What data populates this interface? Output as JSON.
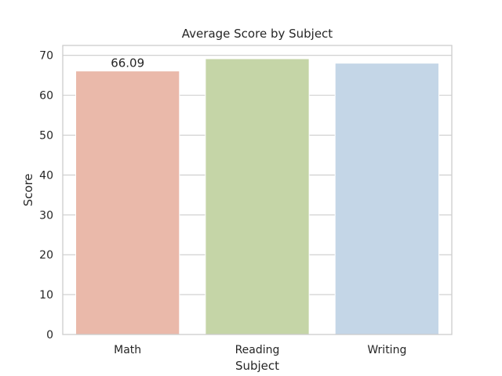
{
  "chart_data": {
    "type": "bar",
    "title": "Average Score by Subject",
    "xlabel": "Subject",
    "ylabel": "Score",
    "categories": [
      "Math",
      "Reading",
      "Writing"
    ],
    "values": [
      66.09,
      69.17,
      68.05
    ],
    "colors": [
      "#eab9aa",
      "#c5d5a7",
      "#c4d6e7"
    ],
    "data_labels": [
      "66.09",
      "",
      ""
    ],
    "ylim": [
      0,
      72.5
    ],
    "yticks": [
      0,
      10,
      20,
      30,
      40,
      50,
      60,
      70
    ],
    "grid": "horizontal",
    "background": "#ffffff",
    "grid_color": "#cccccc",
    "frame_color": "#cccccc"
  }
}
